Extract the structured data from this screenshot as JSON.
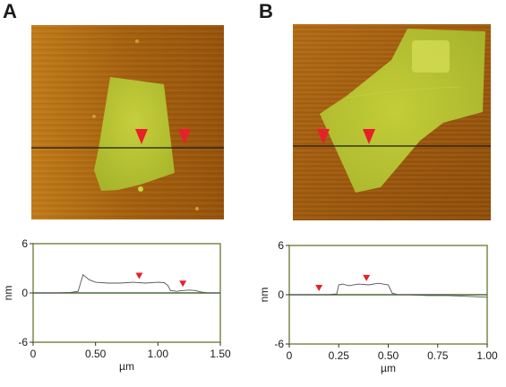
{
  "figure": {
    "panels": [
      {
        "label": "A",
        "marker_color": "#e8202a",
        "substrate_color": "#b06a12",
        "flake_color": "#b6c230"
      },
      {
        "label": "B",
        "marker_color": "#e8202a",
        "substrate_color": "#a85c0e",
        "flake_color": "#b6c230"
      }
    ]
  },
  "chart_data": [
    {
      "type": "line",
      "title": "",
      "xlabel": "µm",
      "ylabel": "nm",
      "xlim": [
        0,
        1.5
      ],
      "ylim": [
        -6,
        6
      ],
      "xticks": [
        0,
        0.5,
        1.0,
        1.5
      ],
      "xtick_labels": [
        "0",
        "0.50",
        "1.00",
        "1.50"
      ],
      "yticks": [
        -6,
        0,
        6
      ],
      "ytick_labels": [
        "-6",
        "0",
        "6"
      ],
      "markers_x": [
        0.85,
        1.2
      ],
      "series": [
        {
          "x": [
            0,
            0.1,
            0.2,
            0.3,
            0.36,
            0.4,
            0.45,
            0.5,
            0.6,
            0.7,
            0.8,
            0.9,
            1.0,
            1.05,
            1.08,
            1.1,
            1.15,
            1.2,
            1.25,
            1.3,
            1.35,
            1.4,
            1.5
          ],
          "y": [
            0,
            0,
            0,
            0.05,
            0.2,
            2.2,
            1.6,
            1.3,
            1.2,
            1.2,
            1.3,
            1.2,
            1.3,
            1.25,
            0.9,
            0.3,
            0.2,
            0.3,
            0.35,
            0.3,
            0.1,
            0.0,
            0.0
          ]
        }
      ]
    },
    {
      "type": "line",
      "title": "",
      "xlabel": "µm",
      "ylabel": "nm",
      "xlim": [
        0,
        1.0
      ],
      "ylim": [
        -6,
        6
      ],
      "xticks": [
        0,
        0.25,
        0.5,
        0.75,
        1.0
      ],
      "xtick_labels": [
        "0",
        "0.25",
        "0.50",
        "0.75",
        "1.00"
      ],
      "yticks": [
        -6,
        0,
        6
      ],
      "ytick_labels": [
        "-6",
        "0",
        "6"
      ],
      "markers_x": [
        0.15,
        0.39
      ],
      "series": [
        {
          "x": [
            0,
            0.1,
            0.2,
            0.24,
            0.25,
            0.27,
            0.3,
            0.35,
            0.4,
            0.45,
            0.5,
            0.52,
            0.55,
            0.6,
            0.7,
            0.8,
            0.9,
            1.0
          ],
          "y": [
            0,
            0,
            0,
            0.1,
            1.2,
            1.3,
            1.1,
            1.3,
            1.2,
            1.4,
            1.2,
            0.2,
            0.0,
            0.0,
            -0.1,
            -0.1,
            -0.2,
            -0.3
          ]
        }
      ]
    }
  ]
}
